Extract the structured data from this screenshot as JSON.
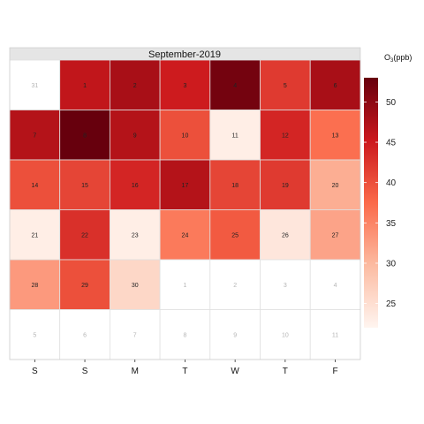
{
  "chart_data": {
    "type": "heatmap",
    "title": "September-2019",
    "legend": {
      "title_main": "O",
      "title_sub": "3",
      "title_unit": "(ppb)",
      "ticks": [
        25,
        30,
        35,
        40,
        45,
        50
      ],
      "range": [
        22,
        53
      ],
      "position": "right"
    },
    "weekday_labels": [
      "S",
      "S",
      "M",
      "T",
      "W",
      "T",
      "F"
    ],
    "cells": [
      {
        "label": "31",
        "value": null
      },
      {
        "label": "1",
        "value": 46
      },
      {
        "label": "2",
        "value": 48
      },
      {
        "label": "3",
        "value": 45
      },
      {
        "label": "4",
        "value": 52
      },
      {
        "label": "5",
        "value": 42
      },
      {
        "label": "6",
        "value": 48
      },
      {
        "label": "7",
        "value": 47
      },
      {
        "label": "8",
        "value": 53
      },
      {
        "label": "9",
        "value": 47
      },
      {
        "label": "10",
        "value": 40
      },
      {
        "label": "11",
        "value": 23
      },
      {
        "label": "12",
        "value": 44
      },
      {
        "label": "13",
        "value": 37
      },
      {
        "label": "14",
        "value": 40
      },
      {
        "label": "15",
        "value": 41
      },
      {
        "label": "16",
        "value": 44
      },
      {
        "label": "17",
        "value": 47
      },
      {
        "label": "18",
        "value": 41
      },
      {
        "label": "19",
        "value": 42
      },
      {
        "label": "20",
        "value": 31
      },
      {
        "label": "21",
        "value": 23
      },
      {
        "label": "22",
        "value": 43
      },
      {
        "label": "23",
        "value": 23
      },
      {
        "label": "24",
        "value": 36
      },
      {
        "label": "25",
        "value": 39
      },
      {
        "label": "26",
        "value": 24
      },
      {
        "label": "27",
        "value": 32
      },
      {
        "label": "28",
        "value": 33
      },
      {
        "label": "29",
        "value": 40
      },
      {
        "label": "30",
        "value": 26
      },
      {
        "label": "1",
        "value": null
      },
      {
        "label": "2",
        "value": null
      },
      {
        "label": "3",
        "value": null
      },
      {
        "label": "4",
        "value": null
      },
      {
        "label": "5",
        "value": null
      },
      {
        "label": "6",
        "value": null
      },
      {
        "label": "7",
        "value": null
      },
      {
        "label": "8",
        "value": null
      },
      {
        "label": "9",
        "value": null
      },
      {
        "label": "10",
        "value": null
      },
      {
        "label": "11",
        "value": null
      }
    ],
    "colors": {
      "low": "#fff5f0",
      "mid1": "#fcbba1",
      "mid2": "#fb6a4a",
      "mid3": "#cb181d",
      "high": "#67000d",
      "empty": "#ffffff",
      "strip": "#e5e5e5",
      "grid": "#e0e0e0"
    }
  }
}
